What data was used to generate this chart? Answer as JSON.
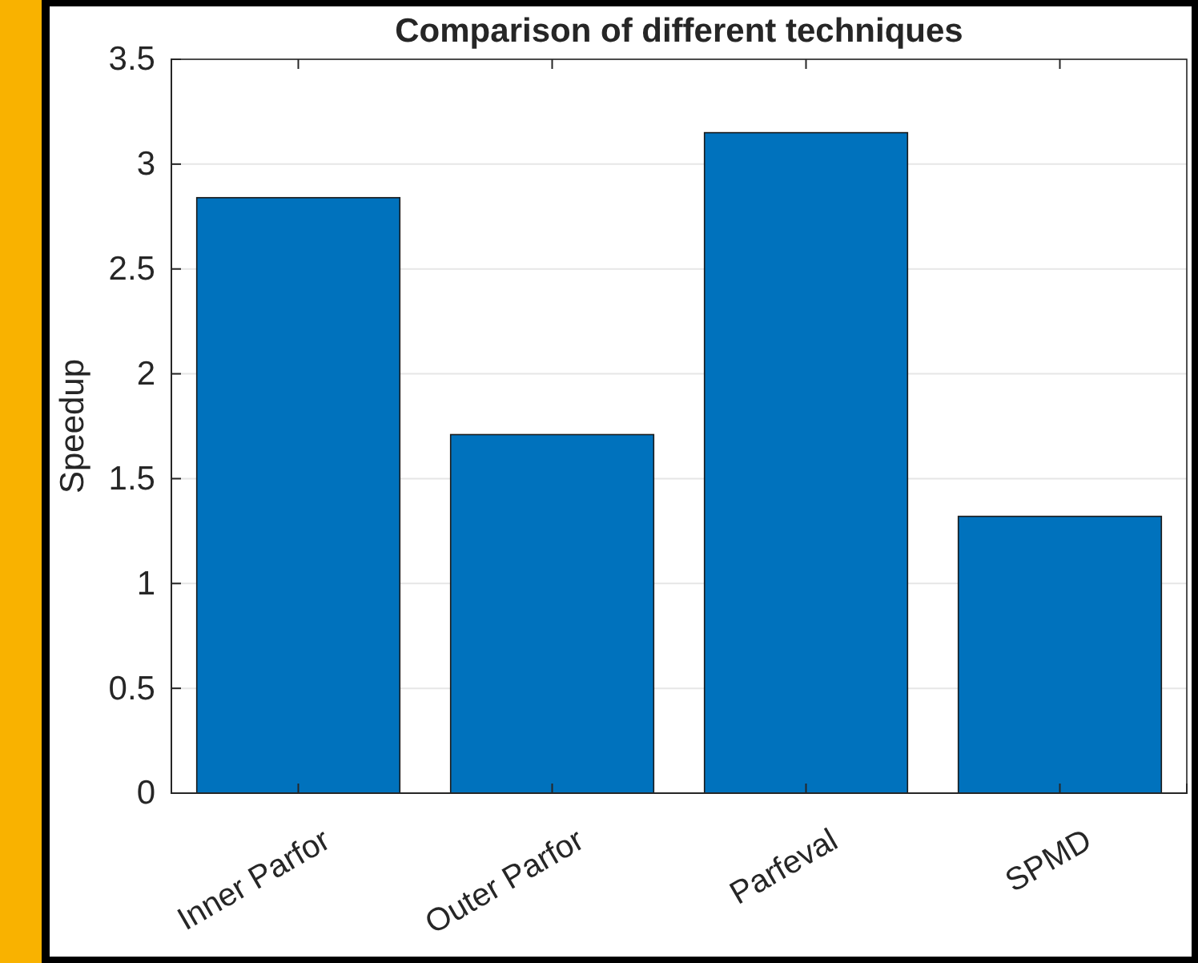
{
  "chart_data": {
    "type": "bar",
    "title": "Comparison of different techniques",
    "ylabel": "Speedup",
    "categories": [
      "Inner Parfor",
      "Outer Parfor",
      "Parfeval",
      "SPMD"
    ],
    "values": [
      2.84,
      1.71,
      3.15,
      1.32
    ],
    "color": "#0072bd",
    "ylim": [
      0,
      3.5
    ],
    "yticks": [
      0,
      0.5,
      1,
      1.5,
      2,
      2.5,
      3,
      3.5
    ],
    "grid": "y"
  }
}
